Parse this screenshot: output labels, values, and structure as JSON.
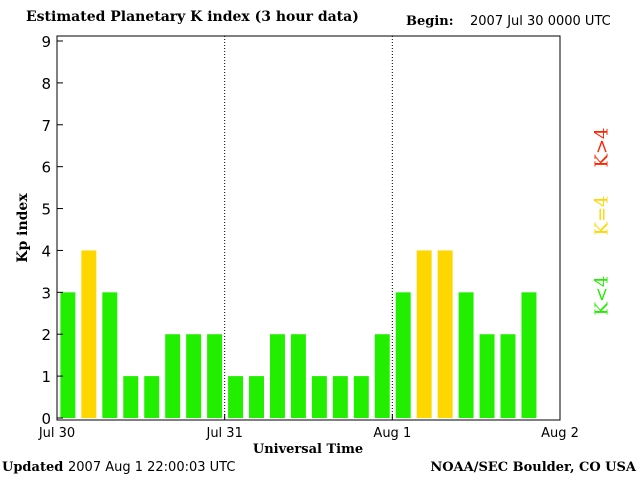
{
  "header": {
    "title": "Estimated Planetary K index (3 hour data)",
    "begin_label": "Begin:",
    "begin_value": "2007 Jul 30 0000 UTC"
  },
  "footer": {
    "updated_label": "Updated",
    "updated_value": "2007 Aug  1 22:00:03 UTC",
    "source": "NOAA/SEC Boulder, CO USA"
  },
  "legend": [
    {
      "label": "K<4",
      "color": "#22ee00"
    },
    {
      "label": "K=4",
      "color": "#ffd700"
    },
    {
      "label": "K>4",
      "color": "#ff2200"
    }
  ],
  "chart_data": {
    "type": "bar",
    "ylabel": "Kp index",
    "xlabel": "Universal Time",
    "ylim": [
      0,
      9
    ],
    "yticks": [
      0,
      1,
      2,
      3,
      4,
      5,
      6,
      7,
      8,
      9
    ],
    "x_ticks": [
      "Jul 30",
      "Jul 31",
      "Aug 1",
      "Aug 2"
    ],
    "slots_total": 24,
    "day_dividers": [
      "Jul 31",
      "Aug 1"
    ],
    "values": [
      3,
      4,
      3,
      1,
      1,
      2,
      2,
      2,
      1,
      1,
      2,
      2,
      1,
      1,
      1,
      2,
      3,
      4,
      4,
      3,
      2,
      2,
      3
    ],
    "colors": {
      "below_4": "#22ee00",
      "equal_4": "#ffd700",
      "above_4": "#ff2200"
    }
  }
}
